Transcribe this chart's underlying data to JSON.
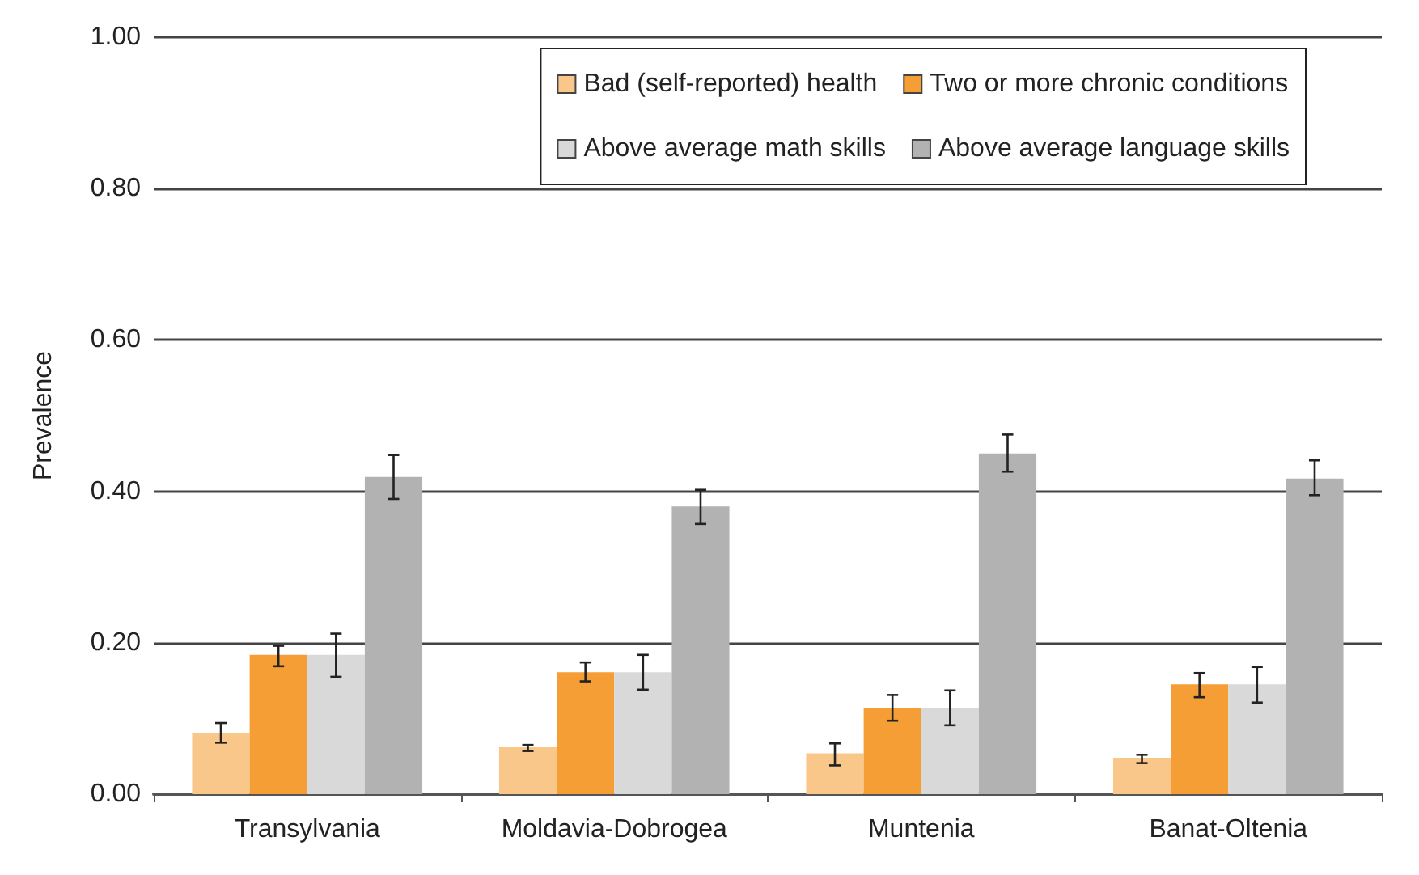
{
  "chart_data": {
    "type": "bar",
    "ylabel": "Prevalence",
    "categories": [
      "Transylvania",
      "Moldavia-Dobrogea",
      "Muntenia",
      "Banat-Oltenia"
    ],
    "series": [
      {
        "name": "Bad (self-reported) health",
        "color": "#f9c78a",
        "values": [
          0.081,
          0.062,
          0.054,
          0.048
        ],
        "errors": [
          [
            0.068,
            0.094
          ],
          [
            0.057,
            0.065
          ],
          [
            0.038,
            0.067
          ],
          [
            0.041,
            0.052
          ]
        ]
      },
      {
        "name": "Two or more chronic conditions",
        "color": "#f49e35",
        "values": [
          0.184,
          0.161,
          0.114,
          0.145
        ],
        "errors": [
          [
            0.169,
            0.196
          ],
          [
            0.149,
            0.174
          ],
          [
            0.097,
            0.131
          ],
          [
            0.128,
            0.16
          ]
        ]
      },
      {
        "name": "Above average math skills",
        "color": "#d9d9d9",
        "values": [
          0.184,
          0.161,
          0.114,
          0.145
        ],
        "errors": [
          [
            0.155,
            0.212
          ],
          [
            0.138,
            0.184
          ],
          [
            0.091,
            0.137
          ],
          [
            0.121,
            0.168
          ]
        ]
      },
      {
        "name": "Above average language skills",
        "color": "#b2b2b2",
        "values": [
          0.419,
          0.38,
          0.45,
          0.417
        ],
        "errors": [
          [
            0.39,
            0.448
          ],
          [
            0.357,
            0.402
          ],
          [
            0.426,
            0.475
          ],
          [
            0.395,
            0.441
          ]
        ]
      }
    ],
    "ylim": [
      0,
      1
    ],
    "yticks": [
      {
        "value": 0,
        "label": "0.00"
      },
      {
        "value": 0.2,
        "label": "0.20"
      },
      {
        "value": 0.4,
        "label": "0.40"
      },
      {
        "value": 0.6,
        "label": "0.60"
      },
      {
        "value": 0.8,
        "label": "0.80"
      },
      {
        "value": 1,
        "label": "1.00"
      }
    ],
    "grid": "y",
    "legend": "top right"
  }
}
